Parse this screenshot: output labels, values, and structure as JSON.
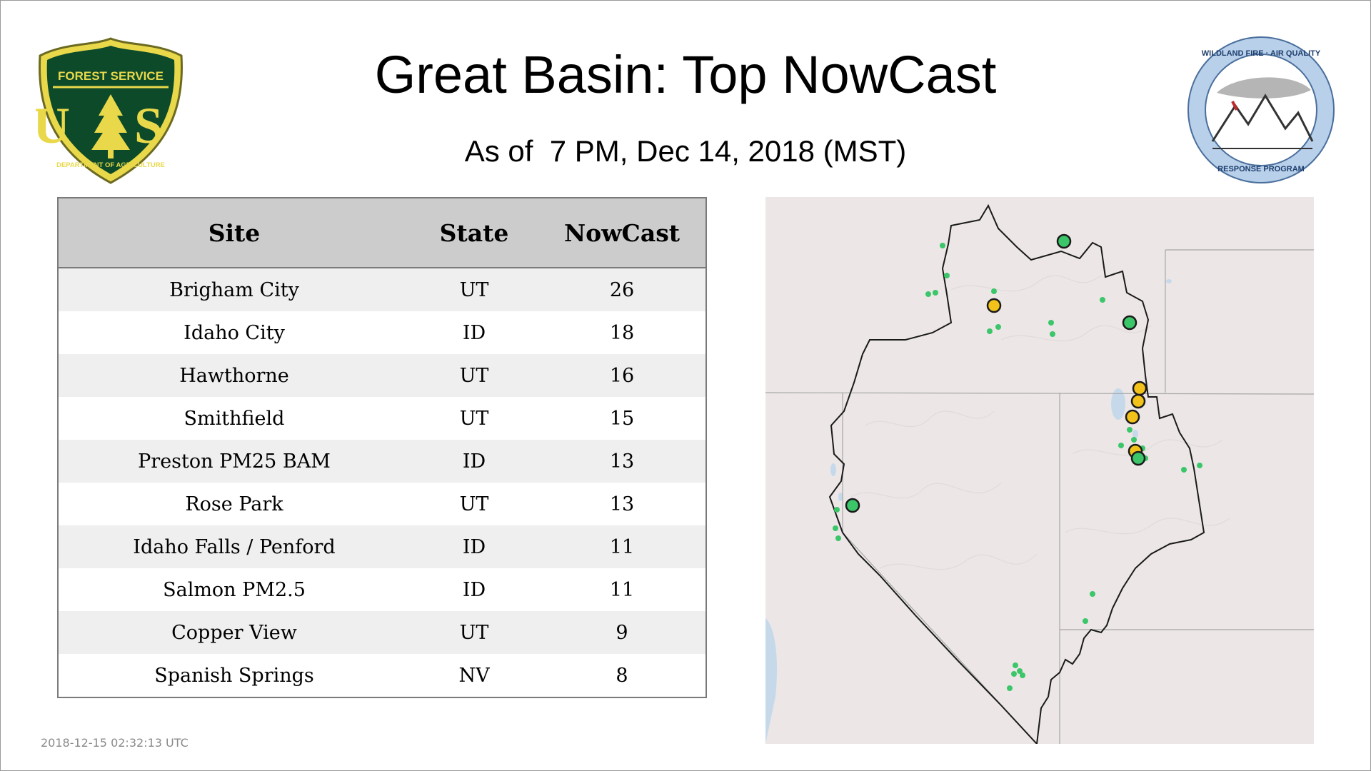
{
  "header": {
    "title": "Great Basin: Top NowCast",
    "subtitle": "As of  7 PM, Dec 14, 2018 (MST)"
  },
  "logos": {
    "forest_service": {
      "icon": "us-forest-service-shield-icon",
      "top_text": "FOREST SERVICE",
      "letters": "U S",
      "bottom_text": "DEPARTMENT OF AGRICULTURE"
    },
    "wildland_fire": {
      "icon": "wildland-fire-air-quality-icon",
      "top_text": "WILDLAND FIRE · AIR QUALITY",
      "bottom_text": "RESPONSE PROGRAM"
    }
  },
  "table": {
    "headers": [
      "Site",
      "State",
      "NowCast"
    ],
    "rows": [
      {
        "site": "Brigham City",
        "state": "UT",
        "nowcast": "26"
      },
      {
        "site": "Idaho City",
        "state": "ID",
        "nowcast": "18"
      },
      {
        "site": "Hawthorne",
        "state": "UT",
        "nowcast": "16"
      },
      {
        "site": "Smithfield",
        "state": "UT",
        "nowcast": "15"
      },
      {
        "site": "Preston PM25 BAM",
        "state": "ID",
        "nowcast": "13"
      },
      {
        "site": "Rose Park",
        "state": "UT",
        "nowcast": "13"
      },
      {
        "site": "Idaho Falls / Penford",
        "state": "ID",
        "nowcast": "11"
      },
      {
        "site": "Salmon PM2.5",
        "state": "ID",
        "nowcast": "11"
      },
      {
        "site": "Copper View",
        "state": "UT",
        "nowcast": "9"
      },
      {
        "site": "Spanish Springs",
        "state": "NV",
        "nowcast": "8"
      }
    ]
  },
  "footer": {
    "timestamp": "2018-12-15 02:32:13 UTC"
  },
  "map": {
    "colors": {
      "land": "#ece6e6",
      "water": "#c6d9ea",
      "good_marker": "#3cc66a",
      "moderate_marker": "#f2c21b",
      "border": "#1a1a1a"
    }
  }
}
